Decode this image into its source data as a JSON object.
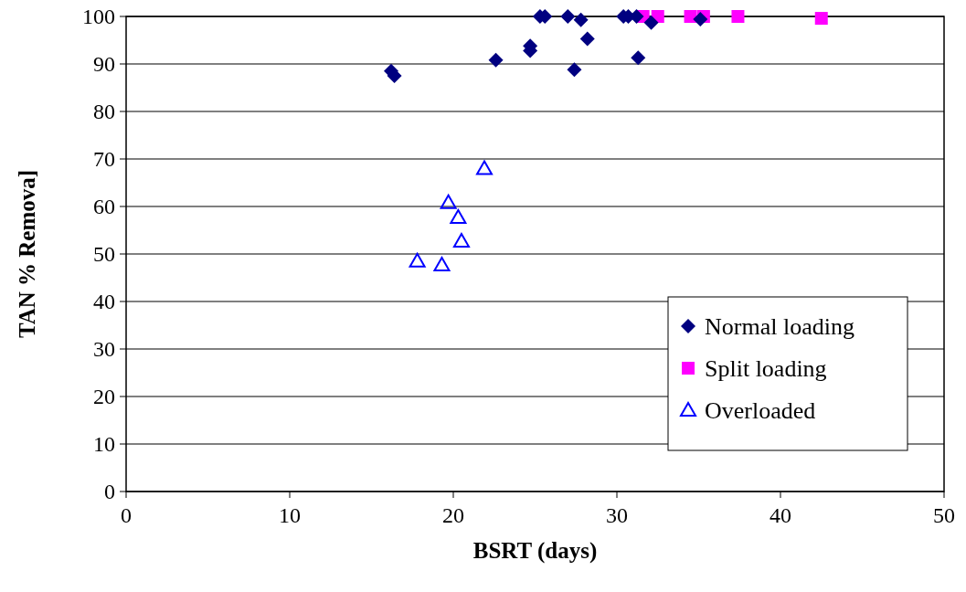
{
  "chart_data": {
    "type": "scatter",
    "xlabel": "BSRT (days)",
    "ylabel": "TAN % Remova]",
    "xlim": [
      0,
      50
    ],
    "xticks": [
      0,
      10,
      20,
      30,
      40,
      50
    ],
    "ylim": [
      0,
      100
    ],
    "yticks": [
      0,
      10,
      20,
      30,
      40,
      50,
      60,
      70,
      80,
      90,
      100
    ],
    "grid": "y",
    "legend": "bottom right",
    "series": [
      {
        "name": "Normal loading",
        "color": "#000080",
        "marker": "diamond",
        "x": [
          16.2,
          16.4,
          22.6,
          24.7,
          24.7,
          25.3,
          25.6,
          27.0,
          27.8,
          27.4,
          28.2,
          30.4,
          30.7,
          31.3,
          31.2,
          32.1,
          35.1
        ],
        "values": [
          88.5,
          87.5,
          90.8,
          93.8,
          92.8,
          100,
          100,
          100,
          99.3,
          88.8,
          95.3,
          100,
          100,
          91.3,
          100,
          98.7,
          99.4
        ]
      },
      {
        "name": "Split loading",
        "color": "#ff00ff",
        "marker": "square",
        "x": [
          31.6,
          32.5,
          34.5,
          35.3,
          37.4,
          42.5
        ],
        "values": [
          100,
          100,
          100,
          100,
          100,
          99.6
        ]
      },
      {
        "name": "Overloaded",
        "color": "#0000ff",
        "marker": "triangle",
        "x": [
          21.9,
          19.7,
          20.3,
          20.5,
          17.8,
          19.3
        ],
        "values": [
          68,
          60.8,
          57.7,
          52.7,
          48.5,
          47.7
        ]
      }
    ]
  }
}
